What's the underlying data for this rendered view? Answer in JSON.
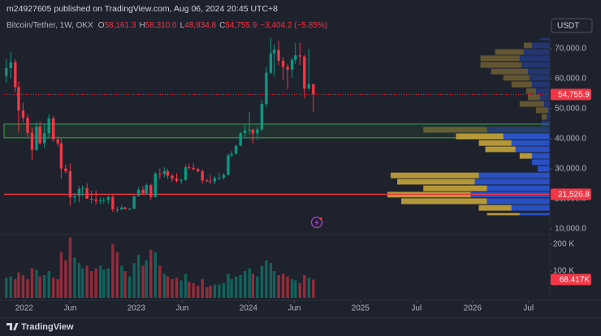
{
  "header": {
    "publisher": "m24927605 published on TradingView.com, Aug 06, 2024 20:45 UTC+8",
    "brand": "TradingView"
  },
  "chart_data": {
    "type": "candlestick",
    "symbol": "Bitcoin/Tether, 1W, OKX",
    "currency": "USDT",
    "ohlc_legend": [
      {
        "key": "O",
        "value": "58,161.3"
      },
      {
        "key": "H",
        "value": "58,310.0"
      },
      {
        "key": "L",
        "value": "48,934.8"
      },
      {
        "key": "C",
        "value": "54,755.9"
      }
    ],
    "change": "−3,404.2 (−5.85%)",
    "up_color": "#089981",
    "down_color": "#f23645",
    "candles": {
      "x": [
        2021.84,
        2021.88,
        2021.92,
        2021.95,
        2021.99,
        2022.03,
        2022.07,
        2022.11,
        2022.14,
        2022.18,
        2022.22,
        2022.26,
        2022.3,
        2022.33,
        2022.37,
        2022.41,
        2022.45,
        2022.49,
        2022.52,
        2022.56,
        2022.6,
        2022.64,
        2022.68,
        2022.71,
        2022.75,
        2022.79,
        2022.83,
        2022.87,
        2022.9,
        2022.94,
        2022.98,
        2023.02,
        2023.06,
        2023.09,
        2023.13,
        2023.17,
        2023.21,
        2023.25,
        2023.28,
        2023.32,
        2023.36,
        2023.4,
        2023.44,
        2023.47,
        2023.51,
        2023.55,
        2023.59,
        2023.63,
        2023.66,
        2023.7,
        2023.74,
        2023.78,
        2023.82,
        2023.85,
        2023.89,
        2023.93,
        2023.97,
        2024.01,
        2024.04,
        2024.08,
        2024.12,
        2024.16,
        2024.2,
        2024.23,
        2024.27,
        2024.31,
        2024.35,
        2024.39,
        2024.42,
        2024.46,
        2024.5,
        2024.54,
        2024.58
      ],
      "open": [
        61000,
        63500,
        65500,
        57200,
        49400,
        47000,
        42000,
        36300,
        44000,
        38500,
        41800,
        46800,
        39800,
        38500,
        30100,
        29200,
        20500,
        21000,
        23300,
        23600,
        20000,
        19800,
        19300,
        19400,
        19600,
        20600,
        16500,
        16500,
        17100,
        16600,
        16700,
        20900,
        23000,
        21800,
        24600,
        20600,
        28400,
        28300,
        29200,
        27700,
        26800,
        26000,
        26300,
        30500,
        30300,
        29900,
        29200,
        26100,
        26000,
        25800,
        26900,
        27000,
        28000,
        34500,
        35000,
        37700,
        41900,
        42800,
        43000,
        41800,
        43100,
        51600,
        62000,
        68400,
        69600,
        66000,
        64000,
        63000,
        66300,
        67800,
        67400,
        56700,
        58161.3
      ],
      "high": [
        66500,
        68800,
        66500,
        59000,
        52000,
        48000,
        43500,
        45500,
        45800,
        45000,
        48200,
        47500,
        40800,
        40000,
        31500,
        31900,
        22000,
        24300,
        24500,
        25200,
        22700,
        22800,
        20500,
        20400,
        21100,
        21500,
        17300,
        18000,
        17400,
        17000,
        21000,
        23900,
        24200,
        25200,
        25000,
        28900,
        30000,
        30500,
        30000,
        28200,
        28500,
        26800,
        31400,
        31800,
        31800,
        30300,
        29800,
        26800,
        28000,
        27500,
        28600,
        28500,
        35000,
        35900,
        38000,
        42200,
        44700,
        48900,
        43400,
        43900,
        52800,
        64000,
        73800,
        71500,
        72700,
        67200,
        65000,
        67000,
        71900,
        71900,
        68000,
        70000,
        58310
      ],
      "low": [
        58500,
        60000,
        55500,
        42000,
        45500,
        40500,
        33000,
        36000,
        38000,
        37000,
        40500,
        39000,
        37500,
        26700,
        28500,
        17600,
        18700,
        18900,
        20700,
        20000,
        18500,
        18200,
        18200,
        18400,
        18200,
        15600,
        15500,
        16300,
        16400,
        16300,
        16600,
        20800,
        21400,
        21400,
        19600,
        20500,
        26600,
        27200,
        26700,
        25800,
        25400,
        24800,
        26000,
        29800,
        29500,
        28800,
        25200,
        25600,
        25000,
        24900,
        26200,
        26500,
        27900,
        33900,
        34800,
        37500,
        40700,
        41500,
        38500,
        39500,
        42500,
        50500,
        61500,
        60700,
        64500,
        59600,
        56500,
        60200,
        65000,
        64500,
        53500,
        56500,
        48934.8
      ],
      "close": [
        63500,
        65500,
        57200,
        49400,
        47000,
        42000,
        36300,
        44000,
        38500,
        41800,
        46800,
        39800,
        38500,
        30100,
        29200,
        20500,
        21000,
        23300,
        23600,
        20000,
        19800,
        19300,
        19400,
        19600,
        20600,
        16500,
        16400,
        17100,
        16600,
        16700,
        20900,
        23000,
        21800,
        24600,
        20600,
        28400,
        28300,
        29200,
        27700,
        26800,
        26000,
        26300,
        30500,
        30300,
        29900,
        29200,
        26100,
        26000,
        25800,
        26900,
        27000,
        28000,
        34500,
        35000,
        37700,
        41900,
        42800,
        43000,
        41800,
        43100,
        51600,
        62000,
        68400,
        69600,
        66000,
        64000,
        63000,
        66300,
        67800,
        67400,
        56700,
        58161.3,
        54755.9
      ],
      "volume": [
        75000,
        80000,
        70000,
        95000,
        85000,
        70000,
        110000,
        105000,
        80000,
        85000,
        100000,
        75000,
        70000,
        170000,
        140000,
        225000,
        150000,
        130000,
        110000,
        120000,
        100000,
        110000,
        120000,
        105000,
        110000,
        200000,
        170000,
        120000,
        100000,
        80000,
        130000,
        160000,
        120000,
        140000,
        180000,
        170000,
        120000,
        90000,
        80000,
        70000,
        75000,
        65000,
        90000,
        60000,
        55000,
        45000,
        70000,
        40000,
        45000,
        50000,
        50000,
        55000,
        90000,
        70000,
        80000,
        85000,
        100000,
        110000,
        90000,
        80000,
        120000,
        140000,
        130000,
        100000,
        85000,
        90000,
        80000,
        70000,
        65000,
        55000,
        85000,
        75000,
        68417
      ]
    },
    "xlim": [
      2021.82,
      2026.69
    ],
    "xticks": [
      {
        "value": 2022,
        "label": "2022"
      },
      {
        "value": 2022.41,
        "label": "Jun"
      },
      {
        "value": 2023,
        "label": "2023"
      },
      {
        "value": 2023.41,
        "label": "Jun"
      },
      {
        "value": 2024,
        "label": "2024"
      },
      {
        "value": 2024.41,
        "label": "Jun"
      },
      {
        "value": 2025,
        "label": "2025"
      },
      {
        "value": 2025.5,
        "label": "Jul"
      },
      {
        "value": 2026,
        "label": "2026"
      },
      {
        "value": 2026.5,
        "label": "Jul"
      }
    ],
    "ylim": [
      9000,
      74000
    ],
    "yticks": [
      {
        "value": 70000,
        "label": "70,000.0"
      },
      {
        "value": 60000,
        "label": "60,000.0"
      },
      {
        "value": 50000,
        "label": "50,000.0"
      },
      {
        "value": 40000,
        "label": "40,000.0"
      },
      {
        "value": 30000,
        "label": "30,000.0"
      },
      {
        "value": 20000,
        "label": "20,000.0"
      },
      {
        "value": 10000,
        "label": "10,000.0"
      }
    ],
    "volume_ylim": [
      0,
      235000
    ],
    "volume_yticks": [
      {
        "value": 200000,
        "label": "200 K"
      },
      {
        "value": 100000,
        "label": "100 K"
      }
    ],
    "price_tag": "54,755.9",
    "volume_tag": "68.417K",
    "level_line": {
      "value": 21526.8,
      "label": "21,526.8",
      "color": "#f23645"
    },
    "zone": [
      40300,
      44900
    ],
    "zone_color": "#3fa34d",
    "volume_profile": {
      "levels": [
        73200,
        71100,
        68900,
        66800,
        64600,
        62400,
        60300,
        58100,
        55900,
        53800,
        51600,
        49500,
        47300,
        45100,
        43000,
        40800,
        38600,
        36500,
        34300,
        32200,
        30000,
        27800,
        25700,
        23500,
        21400,
        19200,
        17000,
        14900
      ],
      "up": [
        12,
        22,
        32,
        37,
        35,
        27,
        25,
        22,
        17,
        12,
        7,
        2,
        4,
        10,
        77,
        57,
        47,
        42,
        22,
        22,
        15,
        87,
        92,
        77,
        97,
        77,
        47,
        37
      ],
      "down": [
        0,
        10,
        35,
        48,
        50,
        45,
        32,
        25,
        12,
        15,
        30,
        15,
        6,
        0,
        78,
        58,
        40,
        37,
        15,
        0,
        0,
        108,
        95,
        78,
        102,
        105,
        40,
        40
      ],
      "up_color": "#2a56d4",
      "down_color": "#c7a43a",
      "value_area": [
        14900,
        40800
      ]
    }
  }
}
